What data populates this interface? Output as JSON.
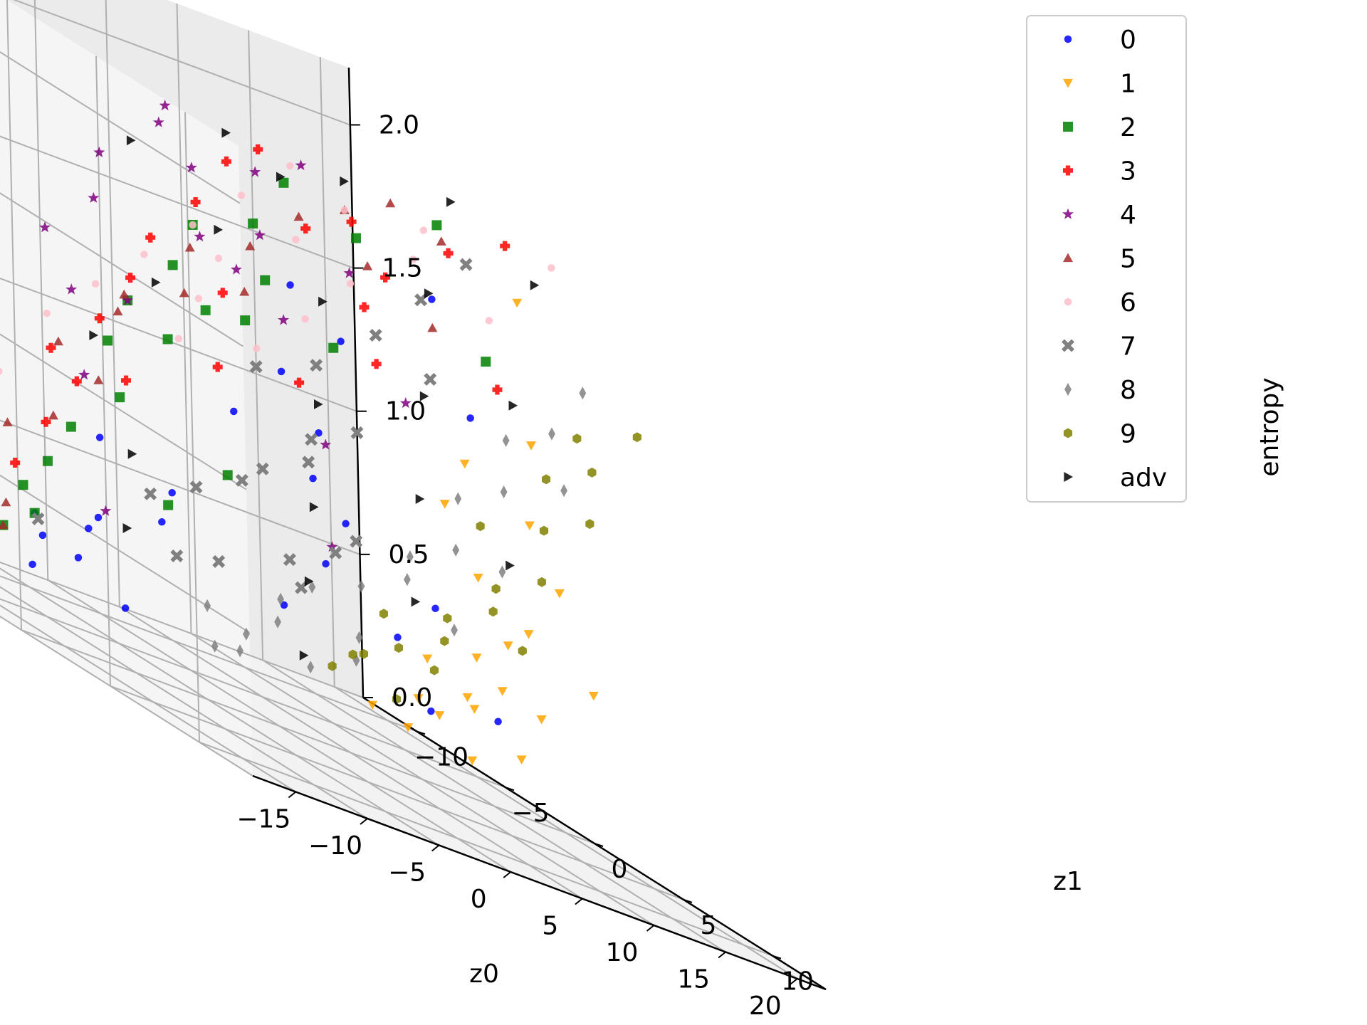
{
  "chart_data": {
    "type": "scatter",
    "projection": "3d",
    "title": "",
    "xlabel": "z0",
    "ylabel": "z1",
    "zlabel": "entropy",
    "xlim": [
      -18,
      22
    ],
    "ylim": [
      -13,
      13
    ],
    "zlim": [
      0.0,
      2.2
    ],
    "xticks": [
      "−15",
      "−10",
      "−5",
      "0",
      "5",
      "10",
      "15",
      "20"
    ],
    "yticks": [
      "−10",
      "−5",
      "0",
      "5",
      "10"
    ],
    "zticks": [
      "0.0",
      "0.5",
      "1.0",
      "1.5",
      "2.0"
    ],
    "grid": true,
    "legend_position": "top-right",
    "series": [
      {
        "name": "0",
        "color": "#0000ff",
        "marker": "circle",
        "points": [
          [
            -6,
            -9,
            0.1
          ],
          [
            -4,
            -8,
            0.2
          ],
          [
            -2,
            -7,
            0.1
          ],
          [
            -5,
            -6,
            0.4
          ],
          [
            -3,
            -4,
            0.5
          ],
          [
            -7,
            -8,
            0.3
          ],
          [
            -1,
            -5,
            0.6
          ],
          [
            -4,
            -10,
            0.2
          ],
          [
            -6,
            -5,
            0.7
          ],
          [
            -2,
            -9,
            0.3
          ],
          [
            3,
            -2,
            0.4
          ],
          [
            5,
            0,
            0.8
          ],
          [
            6,
            2,
            0.5
          ],
          [
            4,
            -1,
            0.9
          ],
          [
            7,
            3,
            0.3
          ],
          [
            2,
            1,
            1.1
          ],
          [
            0,
            4,
            1.5
          ],
          [
            -3,
            3,
            1.3
          ],
          [
            5,
            5,
            0.7
          ],
          [
            8,
            6,
            0.4
          ],
          [
            1,
            -3,
            1.0
          ],
          [
            6,
            -2,
            0.6
          ],
          [
            9,
            4,
            1.4
          ],
          [
            4,
            6,
            1.8
          ],
          [
            -1,
            2,
            1.6
          ]
        ]
      },
      {
        "name": "1",
        "color": "#ffa500",
        "marker": "triangle-down",
        "points": [
          [
            14,
            -4,
            0.1
          ],
          [
            15,
            -3,
            0.2
          ],
          [
            16,
            -2,
            0.1
          ],
          [
            15,
            -1,
            0.3
          ],
          [
            13,
            -2,
            0.4
          ],
          [
            16,
            -5,
            0.2
          ],
          [
            17,
            -3,
            0.3
          ],
          [
            14,
            0,
            0.5
          ],
          [
            15,
            1,
            0.6
          ],
          [
            16,
            2,
            0.4
          ],
          [
            13,
            1,
            0.8
          ],
          [
            14,
            3,
            0.7
          ],
          [
            17,
            0,
            0.2
          ],
          [
            15,
            4,
            0.9
          ],
          [
            12,
            0,
            1.0
          ],
          [
            16,
            5,
            0.6
          ],
          [
            11,
            2,
            1.2
          ],
          [
            14,
            -6,
            0.1
          ],
          [
            17,
            -1,
            0.4
          ],
          [
            13,
            4,
            1.1
          ],
          [
            12,
            5,
            1.4
          ],
          [
            10,
            6,
            1.9
          ]
        ]
      },
      {
        "name": "2",
        "color": "#008000",
        "marker": "square",
        "points": [
          [
            -8,
            -9,
            0.2
          ],
          [
            -7,
            -8,
            0.3
          ],
          [
            -9,
            -7,
            0.4
          ],
          [
            -6,
            -8,
            0.5
          ],
          [
            -8,
            -5,
            0.7
          ],
          [
            -7,
            -3,
            0.9
          ],
          [
            -9,
            -2,
            1.1
          ],
          [
            -6,
            -1,
            1.2
          ],
          [
            -10,
            0,
            1.3
          ],
          [
            -8,
            1,
            1.5
          ],
          [
            -7,
            2,
            1.4
          ],
          [
            -9,
            3,
            1.7
          ],
          [
            -6,
            4,
            1.8
          ],
          [
            -5,
            5,
            2.0
          ],
          [
            -4,
            3,
            1.6
          ],
          [
            -3,
            1,
            1.4
          ],
          [
            -2,
            -1,
            0.8
          ],
          [
            -5,
            -2,
            0.6
          ],
          [
            0,
            5,
            1.9
          ],
          [
            2,
            8,
            2.1
          ],
          [
            4,
            9,
            1.7
          ],
          [
            -3,
            6,
            1.5
          ]
        ]
      },
      {
        "name": "3",
        "color": "#ff0000",
        "marker": "plus",
        "points": [
          [
            -13,
            -6,
            0.3
          ],
          [
            -12,
            -5,
            0.5
          ],
          [
            -11,
            -4,
            0.7
          ],
          [
            -13,
            -2,
            1.0
          ],
          [
            -12,
            0,
            1.2
          ],
          [
            -10,
            -3,
            0.9
          ],
          [
            -11,
            1,
            1.4
          ],
          [
            -12,
            3,
            1.6
          ],
          [
            -10,
            4,
            1.8
          ],
          [
            -9,
            5,
            2.0
          ],
          [
            -8,
            6,
            2.1
          ],
          [
            -6,
            7,
            1.9
          ],
          [
            -4,
            8,
            2.0
          ],
          [
            -2,
            7,
            1.7
          ],
          [
            0,
            6,
            1.5
          ],
          [
            2,
            5,
            1.8
          ],
          [
            4,
            7,
            2.0
          ],
          [
            -7,
            3,
            1.5
          ],
          [
            -5,
            1,
            1.2
          ],
          [
            -9,
            -1,
            1.0
          ],
          [
            6,
            8,
            1.6
          ],
          [
            8,
            7,
            2.1
          ],
          [
            -3,
            4,
            1.3
          ]
        ]
      },
      {
        "name": "4",
        "color": "#800080",
        "marker": "star",
        "points": [
          [
            -12,
            -3,
            1.4
          ],
          [
            -11,
            -1,
            1.6
          ],
          [
            -13,
            1,
            1.8
          ],
          [
            -10,
            2,
            2.0
          ],
          [
            -12,
            4,
            2.1
          ],
          [
            -9,
            3,
            1.9
          ],
          [
            -11,
            5,
            1.7
          ],
          [
            -8,
            6,
            1.8
          ],
          [
            -10,
            0,
            1.3
          ],
          [
            -7,
            5,
            2.0
          ],
          [
            -6,
            3,
            1.6
          ],
          [
            -5,
            6,
            2.1
          ],
          [
            -4,
            4,
            1.5
          ],
          [
            -9,
            -4,
            1.2
          ],
          [
            -3,
            7,
            1.8
          ],
          [
            0,
            3,
            1.1
          ],
          [
            2,
            6,
            1.4
          ],
          [
            -7,
            -5,
            0.9
          ],
          [
            -2,
            -8,
            0.4
          ],
          [
            4,
            0,
            0.7
          ]
        ]
      },
      {
        "name": "5",
        "color": "#a52a2a",
        "marker": "triangle-up",
        "points": [
          [
            -11,
            -8,
            0.5
          ],
          [
            -10,
            -7,
            0.6
          ],
          [
            -9,
            -8,
            0.3
          ],
          [
            -12,
            -6,
            0.8
          ],
          [
            -8,
            -6,
            0.7
          ],
          [
            -10,
            -4,
            1.0
          ],
          [
            -7,
            -3,
            1.2
          ],
          [
            -9,
            -1,
            1.3
          ],
          [
            -6,
            0,
            1.4
          ],
          [
            -8,
            2,
            1.6
          ],
          [
            -5,
            3,
            1.7
          ],
          [
            -4,
            5,
            1.9
          ],
          [
            -2,
            6,
            2.0
          ],
          [
            0,
            7,
            2.1
          ],
          [
            2,
            4,
            1.8
          ],
          [
            -3,
            1,
            1.5
          ],
          [
            -6,
            -5,
            0.9
          ],
          [
            -8,
            -9,
            0.2
          ],
          [
            4,
            6,
            1.7
          ],
          [
            6,
            5,
            2.0
          ]
        ]
      },
      {
        "name": "6",
        "color": "#ffc0cb",
        "marker": "circle",
        "points": [
          [
            -15,
            -9,
            0.4
          ],
          [
            -14,
            -7,
            0.6
          ],
          [
            -13,
            -5,
            0.8
          ],
          [
            -12,
            -3,
            1.1
          ],
          [
            -11,
            -1,
            1.3
          ],
          [
            -10,
            1,
            1.5
          ],
          [
            -9,
            3,
            1.7
          ],
          [
            -8,
            5,
            1.9
          ],
          [
            -7,
            7,
            2.1
          ],
          [
            -6,
            2,
            1.6
          ],
          [
            -5,
            0,
            1.4
          ],
          [
            -4,
            -2,
            1.2
          ],
          [
            -3,
            4,
            1.8
          ],
          [
            -2,
            6,
            2.0
          ],
          [
            0,
            2,
            1.5
          ],
          [
            2,
            3,
            1.7
          ],
          [
            4,
            5,
            1.9
          ],
          [
            6,
            4,
            2.0
          ],
          [
            8,
            6,
            1.8
          ],
          [
            10,
            8,
            2.1
          ],
          [
            -14,
            -10,
            0.2
          ],
          [
            -1,
            0,
            1.3
          ]
        ]
      },
      {
        "name": "7",
        "color": "#808080",
        "marker": "x",
        "points": [
          [
            -5,
            -3,
            0.6
          ],
          [
            -3,
            -2,
            0.7
          ],
          [
            -1,
            -1,
            0.8
          ],
          [
            1,
            0,
            0.6
          ],
          [
            -2,
            1,
            0.9
          ],
          [
            0,
            2,
            1.0
          ],
          [
            2,
            3,
            0.8
          ],
          [
            -4,
            0,
            0.5
          ],
          [
            3,
            1,
            0.7
          ],
          [
            -1,
            3,
            1.1
          ],
          [
            1,
            4,
            1.2
          ],
          [
            -3,
            5,
            1.4
          ],
          [
            0,
            6,
            1.6
          ],
          [
            2,
            7,
            1.8
          ],
          [
            4,
            8,
            2.0
          ],
          [
            -6,
            4,
            1.3
          ],
          [
            -8,
            -7,
            0.3
          ],
          [
            5,
            5,
            1.5
          ],
          [
            -2,
            -4,
            0.4
          ],
          [
            3,
            -1,
            0.5
          ]
        ]
      },
      {
        "name": "8",
        "color": "#808080",
        "marker": "diamond",
        "points": [
          [
            3,
            -6,
            0.1
          ],
          [
            4,
            -5,
            0.2
          ],
          [
            5,
            -4,
            0.3
          ],
          [
            6,
            -3,
            0.2
          ],
          [
            4,
            -3,
            0.4
          ],
          [
            5,
            -2,
            0.5
          ],
          [
            7,
            -1,
            0.4
          ],
          [
            6,
            0,
            0.6
          ],
          [
            8,
            1,
            0.7
          ],
          [
            7,
            2,
            0.8
          ],
          [
            9,
            3,
            0.9
          ],
          [
            8,
            4,
            1.1
          ],
          [
            10,
            5,
            1.2
          ],
          [
            9,
            6,
            1.4
          ],
          [
            11,
            7,
            1.5
          ],
          [
            12,
            8,
            1.7
          ],
          [
            6,
            -7,
            0.1
          ],
          [
            5,
            -8,
            0.2
          ],
          [
            8,
            -2,
            0.3
          ],
          [
            10,
            2,
            0.6
          ],
          [
            11,
            4,
            0.9
          ],
          [
            13,
            6,
            1.3
          ]
        ]
      },
      {
        "name": "9",
        "color": "#808000",
        "marker": "hexagon",
        "points": [
          [
            10,
            -5,
            0.2
          ],
          [
            11,
            -4,
            0.3
          ],
          [
            12,
            -3,
            0.2
          ],
          [
            11,
            -2,
            0.4
          ],
          [
            13,
            -1,
            0.5
          ],
          [
            12,
            0,
            0.6
          ],
          [
            14,
            1,
            0.7
          ],
          [
            13,
            2,
            0.8
          ],
          [
            15,
            3,
            0.9
          ],
          [
            14,
            4,
            1.1
          ],
          [
            16,
            5,
            1.2
          ],
          [
            15,
            6,
            1.4
          ],
          [
            17,
            7,
            1.6
          ],
          [
            10,
            -2,
            0.5
          ],
          [
            12,
            2,
            1.0
          ],
          [
            14,
            6,
            1.5
          ],
          [
            9,
            -3,
            0.3
          ],
          [
            16,
            1,
            0.6
          ],
          [
            13,
            5,
            1.3
          ],
          [
            11,
            0,
            0.4
          ]
        ]
      },
      {
        "name": "adv",
        "color": "#000000",
        "marker": "triangle-right",
        "points": [
          [
            -10,
            -2,
            1.1
          ],
          [
            -8,
            0,
            1.4
          ],
          [
            -6,
            2,
            1.7
          ],
          [
            -4,
            4,
            2.0
          ],
          [
            -2,
            6,
            2.1
          ],
          [
            0,
            3,
            1.6
          ],
          [
            2,
            1,
            1.2
          ],
          [
            4,
            -1,
            0.8
          ],
          [
            6,
            -3,
            0.5
          ],
          [
            8,
            -5,
            0.2
          ],
          [
            -12,
            2,
            1.9
          ],
          [
            -9,
            5,
            2.1
          ],
          [
            5,
            5,
            1.8
          ],
          [
            7,
            3,
            1.4
          ],
          [
            9,
            1,
            1.0
          ],
          [
            11,
            -1,
            0.6
          ],
          [
            12,
            4,
            1.5
          ],
          [
            -5,
            -4,
            0.7
          ],
          [
            -3,
            -6,
            0.4
          ],
          [
            10,
            7,
            2.0
          ],
          [
            14,
            2,
            0.9
          ],
          [
            3,
            8,
            2.2
          ]
        ]
      }
    ]
  }
}
